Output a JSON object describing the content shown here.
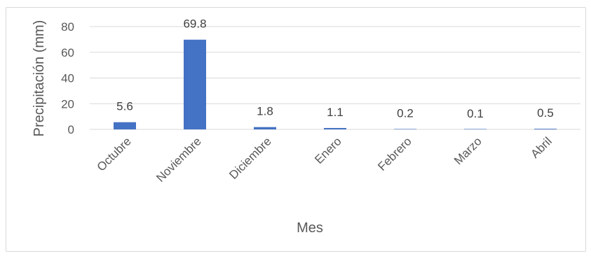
{
  "chart_data": {
    "type": "bar",
    "title": "",
    "xlabel": "Mes",
    "ylabel": "Precipitación (mm)",
    "ylim": [
      0,
      80
    ],
    "yticks": [
      0,
      20,
      40,
      60,
      80
    ],
    "grid": true,
    "categories": [
      "Octubre",
      "Noviembre",
      "Diciembre",
      "Enero",
      "Febrero",
      "Marzo",
      "Abril"
    ],
    "values": [
      5.6,
      69.8,
      1.8,
      1.1,
      0.2,
      0.1,
      0.5
    ],
    "data_labels": [
      "5.6",
      "69.8",
      "1.8",
      "1.1",
      "0.2",
      "0.1",
      "0.5"
    ],
    "bar_color": "#4472c4"
  }
}
